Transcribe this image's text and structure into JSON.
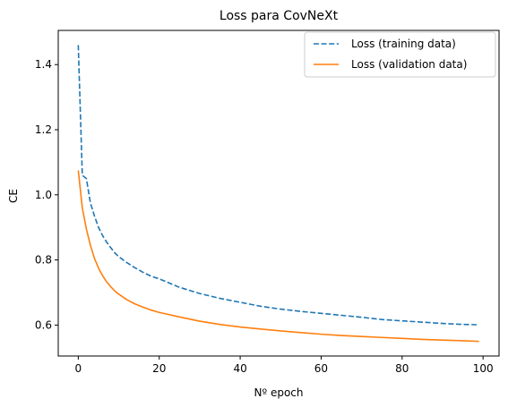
{
  "chart_data": {
    "type": "line",
    "title": "Loss para CovNeXt",
    "xlabel": "Nº epoch",
    "ylabel": "CE",
    "xlim": [
      -4.95,
      103.95
    ],
    "ylim": [
      0.505,
      1.505
    ],
    "xticks": [
      0,
      20,
      40,
      60,
      80,
      100
    ],
    "xtick_labels": [
      "0",
      "20",
      "40",
      "60",
      "80",
      "100"
    ],
    "yticks": [
      0.6,
      0.8,
      1.0,
      1.2,
      1.4
    ],
    "ytick_labels": [
      "0.6",
      "0.8",
      "1.0",
      "1.2",
      "1.4"
    ],
    "grid": false,
    "legend_position": "top-right",
    "series": [
      {
        "name": "Loss (training data)",
        "color": "#1f77b4",
        "dash": "dashed",
        "x": [
          0,
          1,
          2,
          3,
          4,
          5,
          6,
          7,
          8,
          9,
          10,
          12,
          14,
          16,
          18,
          20,
          25,
          30,
          35,
          40,
          45,
          50,
          55,
          60,
          65,
          70,
          75,
          80,
          85,
          90,
          95,
          99
        ],
        "y": [
          1.46,
          1.06,
          1.05,
          0.975,
          0.935,
          0.9,
          0.875,
          0.855,
          0.838,
          0.822,
          0.81,
          0.792,
          0.776,
          0.762,
          0.75,
          0.742,
          0.716,
          0.697,
          0.682,
          0.67,
          0.658,
          0.649,
          0.642,
          0.636,
          0.63,
          0.624,
          0.617,
          0.613,
          0.609,
          0.605,
          0.602,
          0.601
        ]
      },
      {
        "name": "Loss (validation data)",
        "color": "#ff7f0e",
        "dash": "solid",
        "x": [
          0,
          1,
          2,
          3,
          4,
          5,
          6,
          7,
          8,
          9,
          10,
          12,
          14,
          16,
          18,
          20,
          25,
          30,
          35,
          40,
          45,
          50,
          55,
          60,
          65,
          70,
          75,
          80,
          85,
          90,
          95,
          99
        ],
        "y": [
          1.075,
          0.96,
          0.895,
          0.845,
          0.805,
          0.775,
          0.752,
          0.733,
          0.718,
          0.705,
          0.695,
          0.678,
          0.665,
          0.655,
          0.646,
          0.639,
          0.625,
          0.612,
          0.602,
          0.594,
          0.588,
          0.582,
          0.577,
          0.572,
          0.568,
          0.565,
          0.562,
          0.559,
          0.556,
          0.554,
          0.552,
          0.55
        ]
      }
    ]
  }
}
